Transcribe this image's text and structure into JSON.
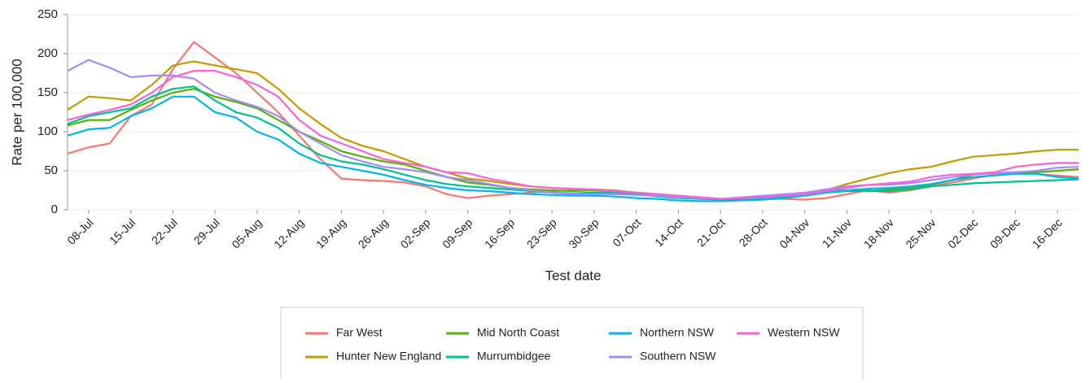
{
  "chart_data": {
    "type": "line",
    "y_label": "Rate per 100,000",
    "x_label": "Test date",
    "categories": [
      null,
      "08-Jul",
      null,
      "15-Jul",
      null,
      "22-Jul",
      null,
      "29-Jul",
      null,
      "05-Aug",
      null,
      "12-Aug",
      null,
      "19-Aug",
      null,
      "26-Aug",
      null,
      "02-Sep",
      null,
      "09-Sep",
      null,
      "16-Sep",
      null,
      "23-Sep",
      null,
      "30-Sep",
      null,
      "07-Oct",
      null,
      "14-Oct",
      null,
      "21-Oct",
      null,
      "28-Oct",
      null,
      "04-Nov",
      null,
      "11-Nov",
      null,
      "18-Nov",
      null,
      "25-Nov",
      null,
      "02-Dec",
      null,
      "09-Dec",
      null,
      "16-Dec",
      null
    ],
    "ylim": [
      0,
      250
    ],
    "yticks": [
      0,
      50,
      100,
      150,
      200,
      250
    ],
    "grid": true,
    "series": [
      {
        "name": "Far West",
        "color": "#F8766D",
        "values": [
          72,
          80,
          85,
          120,
          135,
          180,
          215,
          195,
          175,
          150,
          125,
          95,
          65,
          40,
          38,
          37,
          35,
          30,
          20,
          15,
          18,
          20,
          22,
          24,
          25,
          25,
          23,
          20,
          18,
          16,
          15,
          14,
          14,
          14,
          14,
          13,
          15,
          20,
          25,
          22,
          25,
          30,
          35,
          40,
          45,
          48,
          46,
          44,
          42
        ]
      },
      {
        "name": "Hunter New England",
        "color": "#C49A00",
        "values": [
          128,
          145,
          143,
          140,
          160,
          185,
          190,
          185,
          180,
          175,
          155,
          130,
          110,
          92,
          82,
          75,
          65,
          55,
          48,
          40,
          37,
          33,
          30,
          28,
          27,
          26,
          25,
          22,
          20,
          18,
          16,
          14,
          15,
          16,
          18,
          20,
          25,
          33,
          40,
          47,
          52,
          55,
          62,
          68,
          70,
          72,
          75,
          77,
          77
        ]
      },
      {
        "name": "Mid North Coast",
        "color": "#53B400",
        "values": [
          108,
          115,
          115,
          128,
          140,
          150,
          155,
          145,
          138,
          130,
          115,
          100,
          88,
          75,
          68,
          62,
          58,
          50,
          42,
          35,
          32,
          28,
          26,
          25,
          24,
          25,
          24,
          22,
          20,
          18,
          16,
          14,
          15,
          16,
          18,
          20,
          24,
          25,
          24,
          26,
          28,
          32,
          38,
          45,
          47,
          48,
          48,
          50,
          52
        ]
      },
      {
        "name": "Murrumbidgee",
        "color": "#00C094",
        "values": [
          110,
          120,
          125,
          130,
          145,
          155,
          158,
          140,
          125,
          118,
          105,
          85,
          70,
          62,
          58,
          52,
          45,
          38,
          33,
          30,
          28,
          26,
          24,
          22,
          21,
          22,
          22,
          20,
          17,
          15,
          14,
          13,
          14,
          15,
          16,
          18,
          22,
          24,
          24,
          24,
          26,
          30,
          32,
          34,
          35,
          36,
          37,
          38,
          39
        ]
      },
      {
        "name": "Northern NSW",
        "color": "#00B6EB",
        "values": [
          95,
          103,
          105,
          120,
          130,
          145,
          145,
          125,
          118,
          100,
          90,
          72,
          60,
          55,
          50,
          45,
          38,
          32,
          28,
          25,
          24,
          22,
          20,
          19,
          18,
          18,
          17,
          15,
          14,
          12,
          11,
          11,
          12,
          13,
          15,
          18,
          22,
          25,
          27,
          28,
          30,
          33,
          38,
          42,
          44,
          46,
          46,
          42,
          40
        ]
      },
      {
        "name": "Southern NSW",
        "color": "#A58AFF",
        "values": [
          178,
          192,
          182,
          170,
          172,
          172,
          168,
          150,
          140,
          132,
          120,
          100,
          85,
          70,
          62,
          55,
          52,
          48,
          42,
          38,
          33,
          28,
          25,
          22,
          20,
          20,
          20,
          19,
          18,
          16,
          15,
          14,
          16,
          18,
          20,
          22,
          26,
          30,
          32,
          32,
          34,
          38,
          42,
          45,
          47,
          48,
          50,
          54,
          55
        ]
      },
      {
        "name": "Western NSW",
        "color": "#FB61D7",
        "values": [
          115,
          122,
          128,
          135,
          150,
          170,
          178,
          178,
          170,
          160,
          145,
          115,
          95,
          85,
          75,
          65,
          60,
          55,
          48,
          47,
          40,
          35,
          30,
          28,
          27,
          26,
          24,
          22,
          20,
          18,
          16,
          14,
          15,
          16,
          18,
          20,
          24,
          28,
          32,
          34,
          36,
          42,
          45,
          46,
          48,
          55,
          58,
          60,
          60
        ]
      }
    ]
  }
}
